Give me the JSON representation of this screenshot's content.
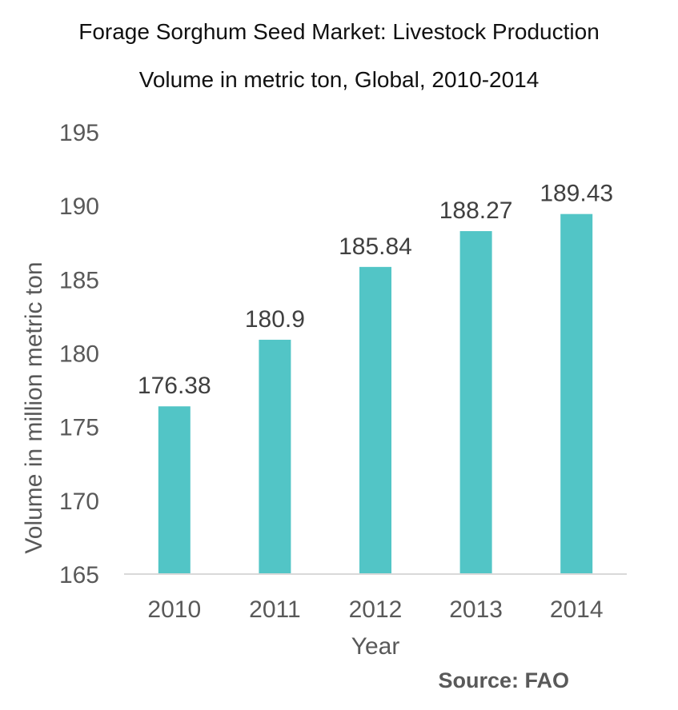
{
  "title_line1": "Forage Sorghum Seed Market: Livestock Production",
  "title_line2": "Volume in metric ton, Global, 2010-2014",
  "source": "Source: FAO",
  "chart_data": {
    "type": "bar",
    "categories": [
      "2010",
      "2011",
      "2012",
      "2013",
      "2014"
    ],
    "values": [
      176.38,
      180.9,
      185.84,
      188.27,
      189.43
    ],
    "value_labels": [
      "176.38",
      "180.9",
      "185.84",
      "188.27",
      "189.43"
    ],
    "xlabel": "Year",
    "ylabel": "Volume in million metric ton",
    "ylim": [
      165,
      195
    ],
    "yticks": [
      165,
      170,
      175,
      180,
      185,
      190,
      195
    ],
    "grid": false,
    "bar_color": "#52c5c6"
  }
}
